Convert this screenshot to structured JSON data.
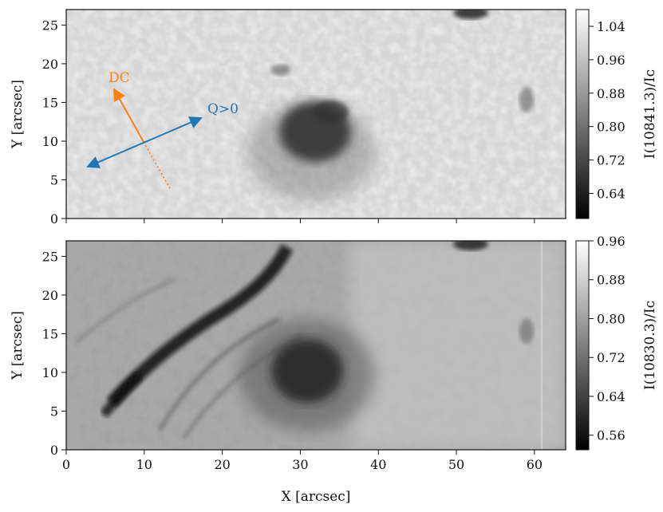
{
  "figure": {
    "panels": [
      {
        "ylabel": "Y [arcsec]",
        "colorbar_label": "I(10841.3)/Iᴄ",
        "colorbar_ticks": [
          "0.64",
          "0.72",
          "0.80",
          "0.88",
          "0.96",
          "1.04"
        ],
        "colorbar_range": [
          0.58,
          1.08
        ],
        "annotations": {
          "dc": "DC",
          "q": "Q>0"
        },
        "colors": {
          "dc": "#ff7f0e",
          "q": "#1f77b4"
        }
      },
      {
        "ylabel": "Y [arcsec]",
        "colorbar_label": "I(10830.3)/Iᴄ",
        "colorbar_ticks": [
          "0.56",
          "0.64",
          "0.72",
          "0.80",
          "0.88",
          "0.96"
        ],
        "colorbar_range": [
          0.53,
          0.96
        ]
      }
    ],
    "xlabel": "X [arcsec]",
    "x_ticks": [
      "0",
      "10",
      "20",
      "30",
      "40",
      "50",
      "60"
    ],
    "y_ticks": [
      "0",
      "5",
      "10",
      "15",
      "20",
      "25"
    ],
    "x_range": [
      0,
      64
    ],
    "y_range": [
      0,
      27
    ]
  }
}
